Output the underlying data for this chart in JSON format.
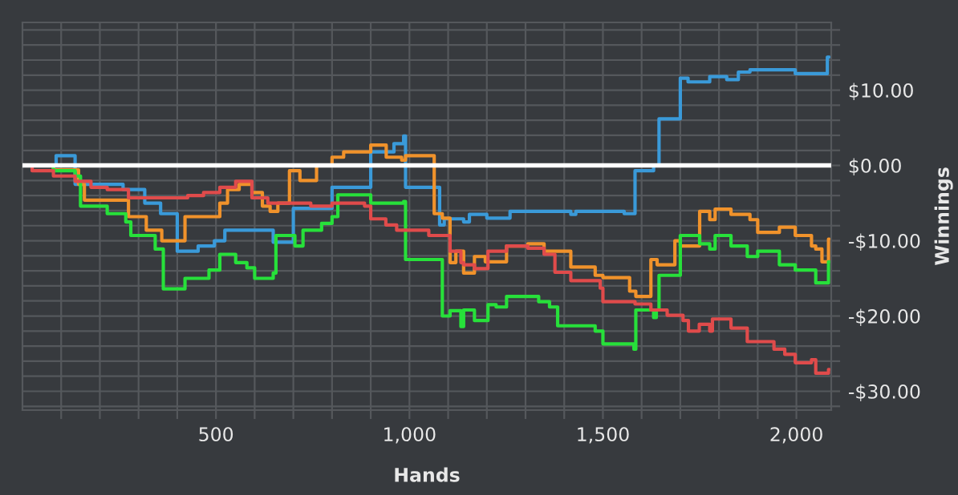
{
  "chart_data": {
    "type": "step",
    "xlabel": "Hands",
    "ylabel": "Winnings",
    "xlim": [
      0,
      2090
    ],
    "ylim": [
      -32.5,
      19
    ],
    "xticks": [
      {
        "value": 100,
        "label": null
      },
      {
        "value": 200,
        "label": null
      },
      {
        "value": 300,
        "label": null
      },
      {
        "value": 400,
        "label": null
      },
      {
        "value": 500,
        "label": "500"
      },
      {
        "value": 600,
        "label": null
      },
      {
        "value": 700,
        "label": null
      },
      {
        "value": 800,
        "label": null
      },
      {
        "value": 900,
        "label": null
      },
      {
        "value": 1000,
        "label": "1,000"
      },
      {
        "value": 1100,
        "label": null
      },
      {
        "value": 1200,
        "label": null
      },
      {
        "value": 1300,
        "label": null
      },
      {
        "value": 1400,
        "label": null
      },
      {
        "value": 1500,
        "label": "1,500"
      },
      {
        "value": 1600,
        "label": null
      },
      {
        "value": 1700,
        "label": null
      },
      {
        "value": 1800,
        "label": null
      },
      {
        "value": 1900,
        "label": null
      },
      {
        "value": 2000,
        "label": "2,000"
      }
    ],
    "yticks": [
      {
        "value": -32,
        "label": null
      },
      {
        "value": -30,
        "label": "-$30.00"
      },
      {
        "value": -28,
        "label": null
      },
      {
        "value": -26,
        "label": null
      },
      {
        "value": -24,
        "label": null
      },
      {
        "value": -22,
        "label": null
      },
      {
        "value": -20,
        "label": "-$20.00"
      },
      {
        "value": -18,
        "label": null
      },
      {
        "value": -16,
        "label": null
      },
      {
        "value": -14,
        "label": null
      },
      {
        "value": -12,
        "label": null
      },
      {
        "value": -10,
        "label": "-$10.00"
      },
      {
        "value": -8,
        "label": null
      },
      {
        "value": -6,
        "label": null
      },
      {
        "value": -4,
        "label": null
      },
      {
        "value": -2,
        "label": null
      },
      {
        "value": 0,
        "label": "$0.00"
      },
      {
        "value": 2,
        "label": null
      },
      {
        "value": 4,
        "label": null
      },
      {
        "value": 6,
        "label": null
      },
      {
        "value": 8,
        "label": null
      },
      {
        "value": 10,
        "label": "$10.00"
      },
      {
        "value": 12,
        "label": null
      },
      {
        "value": 14,
        "label": null
      },
      {
        "value": 16,
        "label": null
      },
      {
        "value": 18,
        "label": null
      }
    ],
    "grid": true,
    "legend": false,
    "ref_lines": [
      {
        "axis": "y",
        "value": 0,
        "color": "#ffffff"
      }
    ],
    "series": [
      {
        "color": "#3a9ad9",
        "x": [
          0,
          87,
          136,
          260,
          316,
          357,
          400,
          454,
          496,
          523,
          648,
          700,
          800,
          900,
          960,
          985,
          990,
          1078,
          1090,
          1140,
          1155,
          1200,
          1260,
          1417,
          1430,
          1555,
          1580,
          1583,
          1631,
          1645,
          1693,
          1700,
          1720,
          1776,
          1790,
          1820,
          1850,
          1880,
          1997,
          2066,
          2080,
          2085
        ],
        "values": [
          0,
          1.3,
          -2.5,
          -3.2,
          -5,
          -6.4,
          -11.4,
          -10.7,
          -10,
          -8.6,
          -10.2,
          -5.7,
          -2.9,
          1.8,
          2.9,
          3.9,
          -2.9,
          -7.9,
          -7.1,
          -7.5,
          -6.5,
          -7,
          -6.1,
          -6.5,
          -6.1,
          -6.4,
          -6.4,
          -0.7,
          0,
          6.2,
          6.2,
          11.6,
          11.1,
          11.8,
          11.8,
          11.4,
          12.4,
          12.7,
          12.2,
          12.2,
          14.4,
          14.4
        ]
      },
      {
        "color": "#f0922b",
        "x": [
          0,
          80,
          145,
          160,
          250,
          274,
          320,
          360,
          420,
          470,
          510,
          530,
          560,
          593,
          620,
          640,
          660,
          690,
          704,
          717,
          760,
          800,
          830,
          900,
          910,
          940,
          980,
          990,
          1064,
          1078,
          1085,
          1105,
          1120,
          1140,
          1168,
          1196,
          1251,
          1306,
          1348,
          1369,
          1417,
          1480,
          1500,
          1569,
          1580,
          1585,
          1624,
          1640,
          1686,
          1692,
          1700,
          1750,
          1757,
          1776,
          1790,
          1831,
          1880,
          1900,
          1956,
          1997,
          2039,
          2050,
          2066,
          2083,
          2085
        ],
        "values": [
          0,
          -0.6,
          -2.5,
          -4.6,
          -4.6,
          -6.8,
          -8.6,
          -10,
          -6.8,
          -6.8,
          -5,
          -3.2,
          -2.5,
          -3.6,
          -5.4,
          -6.1,
          -5,
          -0.7,
          -0.7,
          -2,
          0,
          1.1,
          1.8,
          2.7,
          2.7,
          1.1,
          0.7,
          1.3,
          -6.4,
          -6.4,
          -7,
          -12.9,
          -11.4,
          -14.3,
          -12.1,
          -12.8,
          -10.7,
          -10.4,
          -11.4,
          -11.4,
          -13.5,
          -14.6,
          -14.9,
          -16.7,
          -16.7,
          -17.4,
          -12.5,
          -13.2,
          -10,
          -10,
          -10.7,
          -6.1,
          -6.1,
          -7.2,
          -5.8,
          -6.5,
          -7.2,
          -8.9,
          -8.2,
          -9.3,
          -10.7,
          -11.1,
          -12.8,
          -9.8,
          -9.8
        ]
      },
      {
        "color": "#27e03a",
        "x": [
          0,
          80,
          136,
          150,
          219,
          267,
          280,
          343,
          364,
          400,
          420,
          482,
          510,
          523,
          551,
          580,
          600,
          634,
          648,
          655,
          690,
          704,
          725,
          773,
          800,
          815,
          884,
          900,
          970,
          985,
          990,
          1078,
          1085,
          1105,
          1133,
          1140,
          1168,
          1203,
          1224,
          1251,
          1280,
          1334,
          1362,
          1383,
          1417,
          1480,
          1500,
          1569,
          1580,
          1585,
          1624,
          1631,
          1638,
          1645,
          1690,
          1700,
          1750,
          1776,
          1790,
          1831,
          1873,
          1900,
          1956,
          1997,
          2032,
          2050,
          2066,
          2083,
          2085
        ],
        "values": [
          0,
          -0.7,
          -1.4,
          -5.4,
          -6.4,
          -7.5,
          -9.3,
          -11.1,
          -16.4,
          -16.4,
          -15,
          -13.9,
          -11.8,
          -11.8,
          -12.9,
          -13.6,
          -15,
          -15,
          -14.3,
          -9.3,
          -9.3,
          -10.7,
          -8.6,
          -7.7,
          -6.8,
          -3.9,
          -3.9,
          -5,
          -5,
          -4.8,
          -12.5,
          -12.5,
          -20,
          -19.3,
          -21.4,
          -19.2,
          -20.6,
          -18.5,
          -18.8,
          -17.4,
          -17.4,
          -18.1,
          -18.8,
          -21.3,
          -21.3,
          -22,
          -23.7,
          -23.7,
          -24.4,
          -19.2,
          -19.2,
          -20.2,
          -19.2,
          -14.6,
          -14.6,
          -9.3,
          -10.4,
          -11.1,
          -9.3,
          -10.7,
          -12.1,
          -11.4,
          -13.2,
          -13.9,
          -13.9,
          -15.6,
          -15.6,
          -12.8,
          -12.8
        ]
      },
      {
        "color": "#e04b4b",
        "x": [
          0,
          25,
          80,
          136,
          177,
          219,
          274,
          400,
          427,
          468,
          510,
          551,
          580,
          593,
          634,
          717,
          745,
          800,
          856,
          884,
          900,
          939,
          967,
          1036,
          1050,
          1078,
          1105,
          1133,
          1140,
          1168,
          1203,
          1251,
          1306,
          1348,
          1376,
          1417,
          1480,
          1493,
          1500,
          1569,
          1583,
          1624,
          1666,
          1707,
          1721,
          1735,
          1749,
          1776,
          1783,
          1831,
          1873,
          1942,
          1970,
          1997,
          2039,
          2050,
          2066,
          2083,
          2085
        ],
        "values": [
          0,
          -0.7,
          -1.4,
          -2.1,
          -2.9,
          -3.2,
          -4.3,
          -4.3,
          -4,
          -3.6,
          -2.9,
          -2.1,
          -2.1,
          -4.3,
          -5,
          -5,
          -5.4,
          -5,
          -5,
          -5.4,
          -7.1,
          -7.9,
          -8.6,
          -8.6,
          -9.3,
          -9.3,
          -11.4,
          -12.9,
          -13.2,
          -13.7,
          -11.4,
          -10.7,
          -11,
          -11.8,
          -14.2,
          -15.3,
          -15.3,
          -16.3,
          -18.1,
          -18.1,
          -18.4,
          -19.2,
          -19.9,
          -20.6,
          -22,
          -22,
          -21.1,
          -22,
          -20.4,
          -21.6,
          -23.4,
          -24.4,
          -25.1,
          -26.2,
          -25.8,
          -27.6,
          -27.6,
          -27.1,
          -27.1
        ]
      }
    ]
  }
}
